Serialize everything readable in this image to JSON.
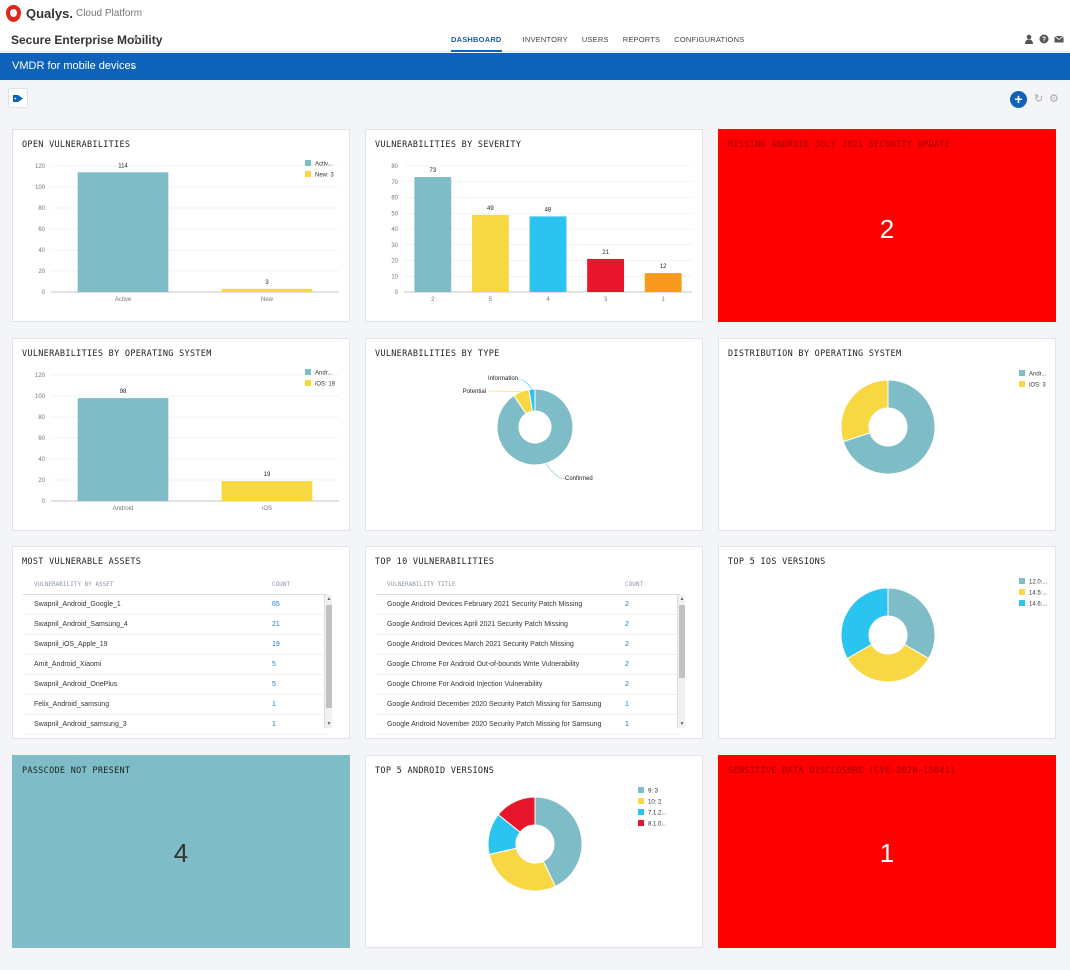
{
  "app": {
    "brand": "Qualys.",
    "platform": "Cloud Platform",
    "module": "Secure Enterprise Mobility"
  },
  "nav": [
    "DASHBOARD",
    "INVENTORY",
    "USERS",
    "REPORTS",
    "CONFIGURATIONS"
  ],
  "dashboard": {
    "name": "VMDR for mobile devices"
  },
  "icons": {
    "user": "user-icon",
    "help": "help-icon",
    "mail": "mail-icon",
    "tag": "tag-icon",
    "add": "add-icon",
    "refresh": "refresh-icon",
    "settings": "gear-icon"
  },
  "colors": {
    "teal": "#7ebdc8",
    "yellow": "#f7d842",
    "cyan": "#2bc4f1",
    "red": "#e8162c",
    "orange": "#f79a1e",
    "brand_blue": "#0e63b8",
    "alert_red": "#ff0000"
  },
  "widgets": {
    "open_vulns": {
      "title": "OPEN VULNERABILITIES",
      "chart_data": {
        "type": "bar",
        "categories": [
          "Active",
          "New"
        ],
        "values": [
          114,
          3
        ],
        "ylim": [
          0,
          120
        ],
        "yticks": [
          0,
          20,
          40,
          60,
          80,
          100,
          120
        ],
        "legend": [
          "Activ...",
          "New: 3"
        ],
        "legend_position": "top-right"
      }
    },
    "vulns_by_severity": {
      "title": "VULNERABILITIES BY SEVERITY",
      "chart_data": {
        "type": "bar",
        "categories": [
          "2",
          "5",
          "4",
          "3",
          "1"
        ],
        "values": [
          73,
          49,
          48,
          21,
          12
        ],
        "ylim": [
          0,
          80
        ],
        "yticks": [
          0,
          10,
          20,
          30,
          40,
          50,
          60,
          70,
          80
        ]
      }
    },
    "missing_android": {
      "title": "MISSING ANDROID JULY 2021 SECURITY UPDATE",
      "value": "2"
    },
    "vulns_by_os": {
      "title": "VULNERABILITIES BY OPERATING SYSTEM",
      "chart_data": {
        "type": "bar",
        "categories": [
          "Android",
          "iOS"
        ],
        "values": [
          98,
          19
        ],
        "ylim": [
          0,
          120
        ],
        "yticks": [
          0,
          20,
          40,
          60,
          80,
          100,
          120
        ],
        "legend": [
          "Andr...",
          "iOS: 19"
        ],
        "legend_position": "top-right"
      }
    },
    "vulns_by_type": {
      "title": "VULNERABILITIES BY TYPE",
      "chart_data": {
        "type": "pie",
        "labels": [
          "Confirmed",
          "Potential",
          "Information"
        ],
        "values": [
          106,
          8,
          3
        ]
      }
    },
    "dist_by_os": {
      "title": "DISTRIBUTION BY OPERATING SYSTEM",
      "chart_data": {
        "type": "pie",
        "labels": [
          "Andr...",
          "iOS: 3"
        ],
        "values": [
          7,
          3
        ],
        "legend_position": "top-right"
      }
    },
    "most_vulnerable_assets": {
      "title": "MOST VULNERABLE ASSETS",
      "columns": [
        "VULNERABILITY BY ASSET",
        "COUNT"
      ],
      "rows": [
        [
          "Swapnil_Android_Google_1",
          "65"
        ],
        [
          "Swapnil_Android_Samsung_4",
          "21"
        ],
        [
          "Swapnil_iOS_Apple_19",
          "19"
        ],
        [
          "Amit_Android_Xiaomi",
          "5"
        ],
        [
          "Swapnil_Android_OnePlus",
          "5"
        ],
        [
          "Felix_Android_samsung",
          "1"
        ],
        [
          "Swapnil_Android_samsung_3",
          "1"
        ]
      ]
    },
    "top10_vulns": {
      "title": "TOP 10 VULNERABILITIES",
      "columns": [
        "VULNERABILITY TITLE",
        "COUNT"
      ],
      "rows": [
        [
          "Google Android Devices February 2021 Security Patch Missing",
          "2"
        ],
        [
          "Google Android Devices April 2021 Security Patch Missing",
          "2"
        ],
        [
          "Google Android Devices March 2021 Security Patch Missing",
          "2"
        ],
        [
          "Google Chrome For Android Out-of-bounds Write Vulnerability",
          "2"
        ],
        [
          "Google Chrome For Android Injection Vulnerability",
          "2"
        ],
        [
          "Google Android December 2020 Security Patch Missing for Samsung",
          "1"
        ],
        [
          "Google Android November 2020 Security Patch Missing for Samsung",
          "1"
        ]
      ]
    },
    "top5_ios": {
      "title": "TOP 5 IOS VERSIONS",
      "chart_data": {
        "type": "pie",
        "labels": [
          "12.0:...",
          "14.5:...",
          "14.6:..."
        ],
        "values": [
          1,
          1,
          1
        ],
        "legend_position": "top-right"
      }
    },
    "passcode": {
      "title": "PASSCODE NOT PRESENT",
      "value": "4"
    },
    "top5_android": {
      "title": "TOP 5 ANDROID VERSIONS",
      "chart_data": {
        "type": "pie",
        "labels": [
          "9: 3",
          "10: 2",
          "7.1.2...",
          "8.1.0..."
        ],
        "values": [
          3,
          2,
          1,
          1
        ],
        "legend_position": "top-right"
      }
    },
    "sensitive_data": {
      "title": "SENSITIVE DATA DISCLOSURE (CVE-2020-15641)",
      "value": "1"
    }
  }
}
